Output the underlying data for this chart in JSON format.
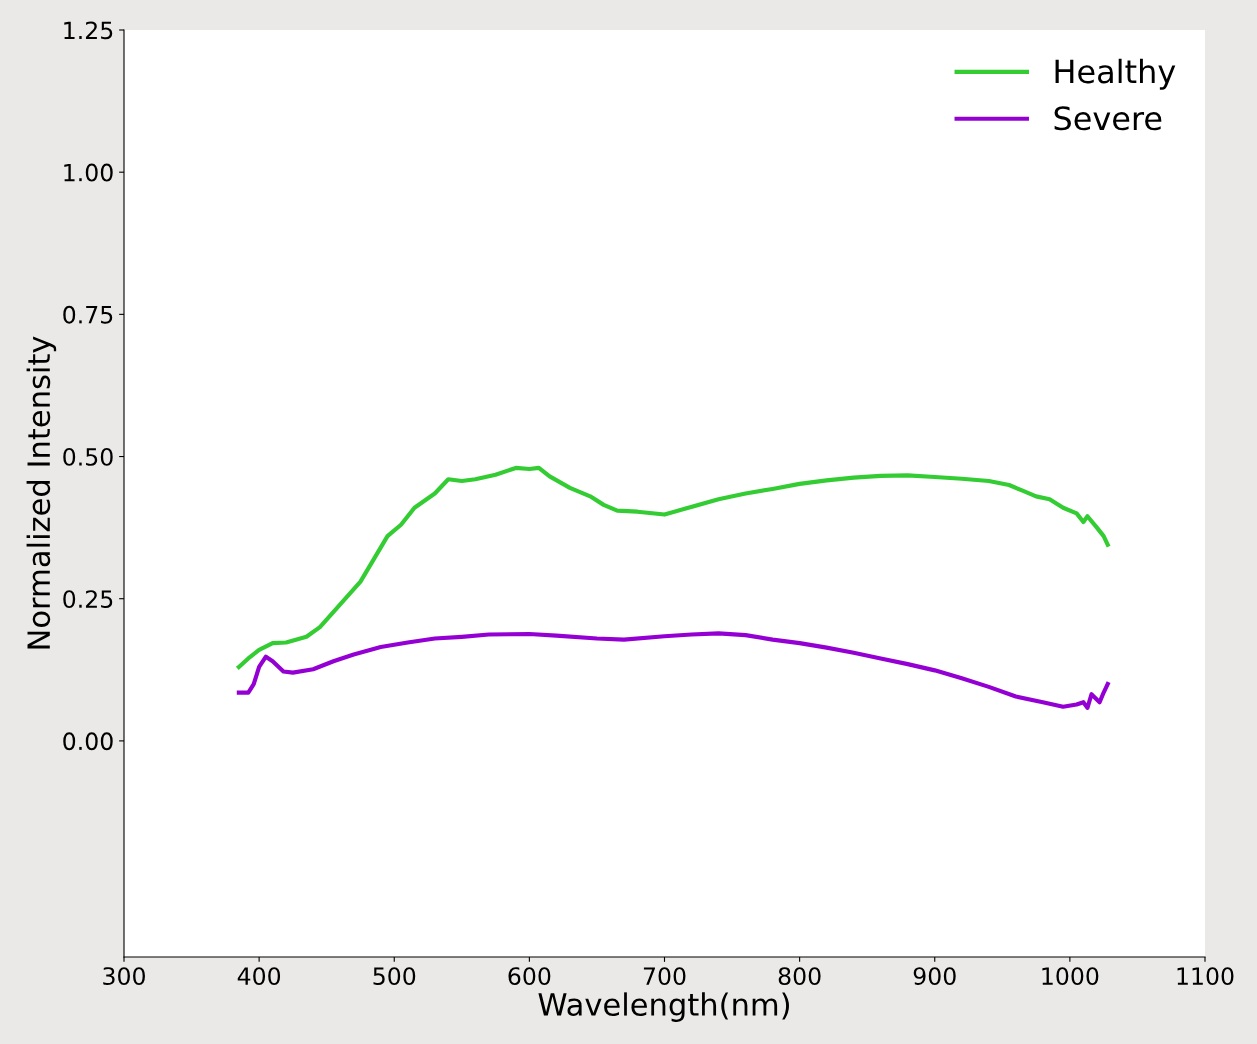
{
  "chart_data": {
    "type": "line",
    "xlabel": "Wavelength(nm)",
    "ylabel": "Normalized Intensity",
    "xlim": [
      300,
      1100
    ],
    "xticks": [
      300,
      400,
      500,
      600,
      700,
      800,
      900,
      1000,
      1100
    ],
    "ylim": [
      -0.38,
      1.25
    ],
    "yticks": [
      {
        "value": 0,
        "label": "0.00"
      },
      {
        "value": 0.25,
        "label": "0.25"
      },
      {
        "value": 0.5,
        "label": "0.50"
      },
      {
        "value": 0.75,
        "label": "0.75"
      },
      {
        "value": 1,
        "label": "1.00"
      },
      {
        "value": 1.25,
        "label": "1.25"
      }
    ],
    "grid": false,
    "legend": "top right",
    "marker": "none",
    "line_style": "solid",
    "series": [
      {
        "name": "Healthy",
        "color": "#33cc33",
        "x": [
          385,
          392,
          400,
          410,
          420,
          435,
          445,
          460,
          475,
          485,
          495,
          505,
          515,
          530,
          540,
          550,
          560,
          575,
          590,
          600,
          607,
          615,
          630,
          645,
          655,
          665,
          680,
          700,
          715,
          740,
          760,
          780,
          800,
          820,
          840,
          860,
          880,
          900,
          920,
          940,
          955,
          965,
          975,
          985,
          995,
          1005,
          1010,
          1013,
          1020,
          1025,
          1028
        ],
        "values": [
          0.13,
          0.145,
          0.16,
          0.172,
          0.173,
          0.183,
          0.2,
          0.24,
          0.28,
          0.32,
          0.36,
          0.38,
          0.41,
          0.435,
          0.46,
          0.457,
          0.46,
          0.468,
          0.48,
          0.478,
          0.48,
          0.465,
          0.445,
          0.43,
          0.415,
          0.405,
          0.403,
          0.398,
          0.408,
          0.425,
          0.435,
          0.443,
          0.452,
          0.458,
          0.463,
          0.466,
          0.467,
          0.464,
          0.461,
          0.457,
          0.45,
          0.44,
          0.43,
          0.425,
          0.41,
          0.4,
          0.385,
          0.395,
          0.375,
          0.36,
          0.345
        ]
      },
      {
        "name": "Severe",
        "color": "#9400d3",
        "x": [
          385,
          392,
          396,
          400,
          405,
          410,
          418,
          425,
          440,
          455,
          470,
          490,
          510,
          530,
          550,
          570,
          600,
          620,
          650,
          670,
          700,
          720,
          740,
          760,
          780,
          800,
          820,
          840,
          860,
          880,
          900,
          920,
          940,
          960,
          980,
          995,
          1005,
          1010,
          1013,
          1016,
          1022,
          1025,
          1028
        ],
        "values": [
          0.085,
          0.085,
          0.1,
          0.13,
          0.148,
          0.14,
          0.122,
          0.12,
          0.126,
          0.14,
          0.152,
          0.165,
          0.173,
          0.18,
          0.183,
          0.187,
          0.188,
          0.185,
          0.18,
          0.178,
          0.184,
          0.187,
          0.189,
          0.186,
          0.178,
          0.172,
          0.164,
          0.155,
          0.145,
          0.135,
          0.124,
          0.11,
          0.095,
          0.078,
          0.068,
          0.06,
          0.064,
          0.068,
          0.058,
          0.082,
          0.068,
          0.085,
          0.1
        ]
      }
    ]
  }
}
